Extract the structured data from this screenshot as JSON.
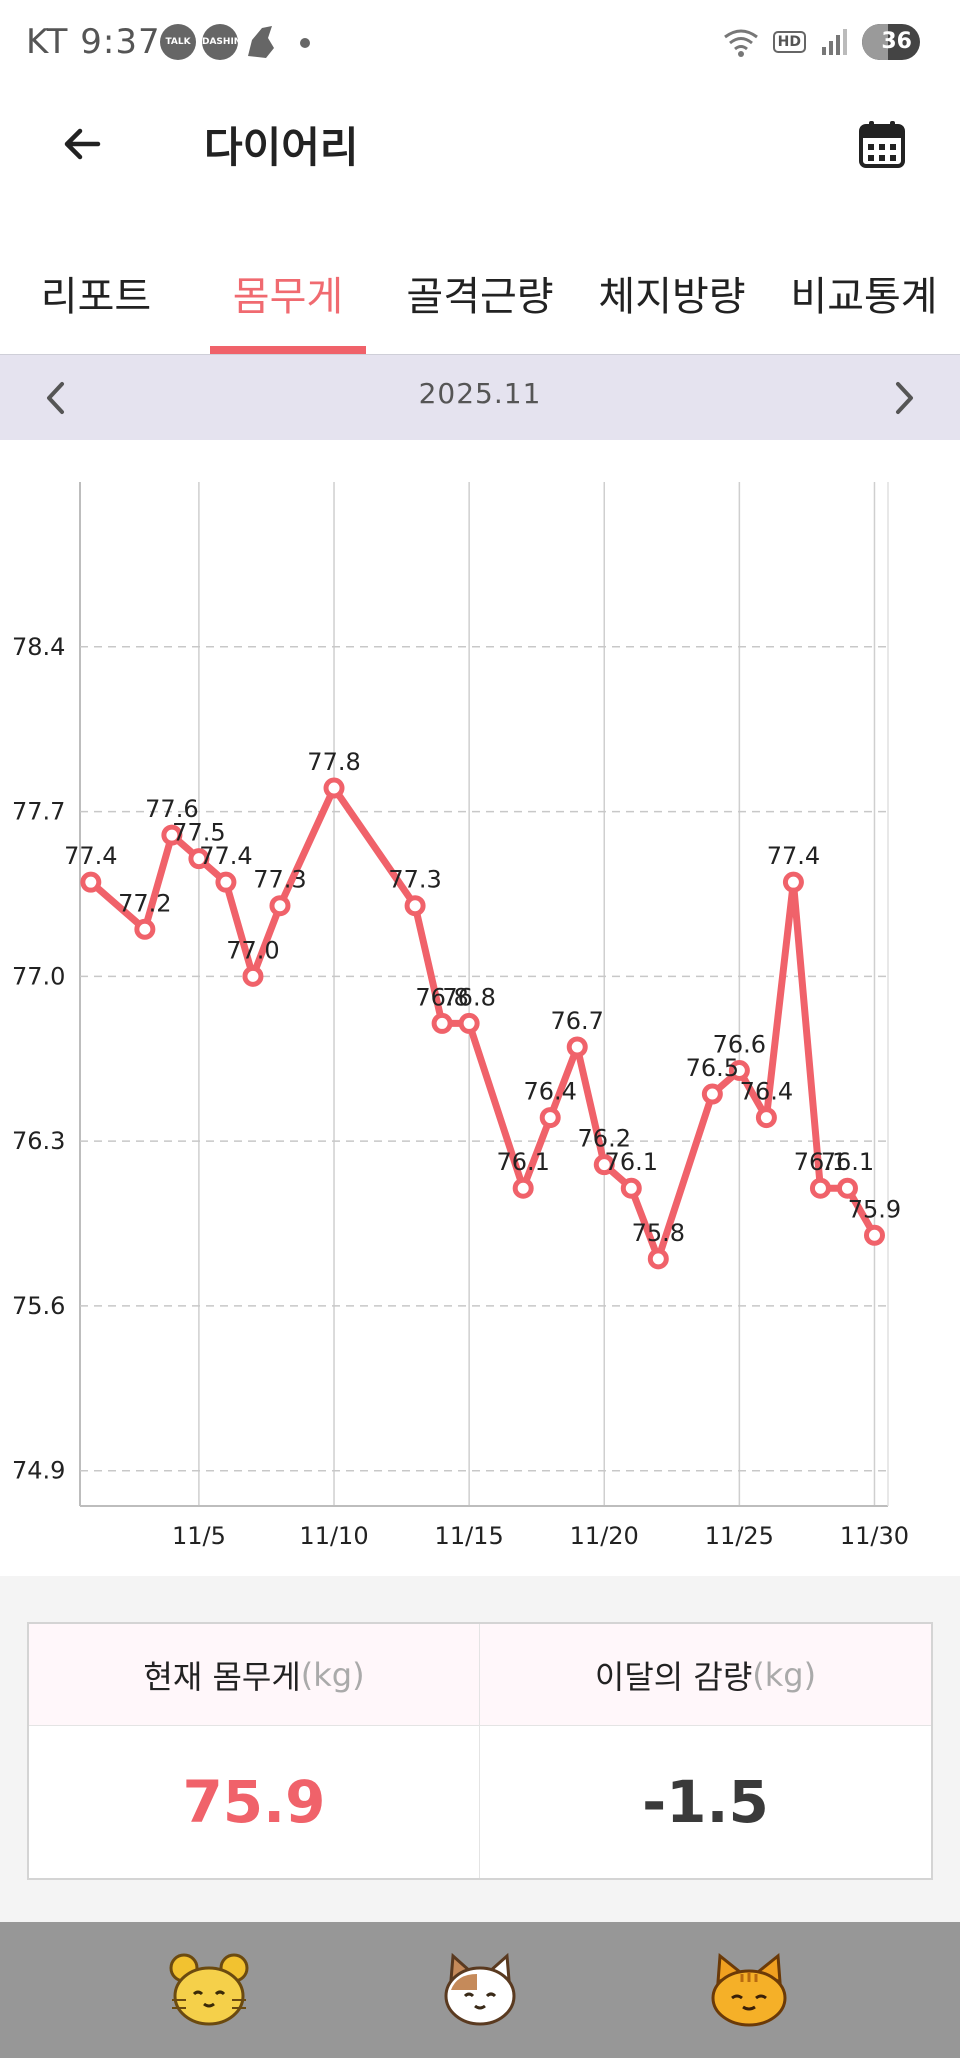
{
  "status_bar": {
    "carrier": "KT",
    "time": "9:37",
    "battery": "36",
    "hd_label": "HD",
    "talk_label": "TALK",
    "dash_label": "DASHIN"
  },
  "app_bar": {
    "title": "다이어리",
    "back_icon": "arrow-left-icon",
    "calendar_icon": "calendar-icon"
  },
  "tabs": [
    {
      "label": "리포트",
      "active": false
    },
    {
      "label": "몸무게",
      "active": true
    },
    {
      "label": "골격근량",
      "active": false
    },
    {
      "label": "체지방량",
      "active": false
    },
    {
      "label": "비교통계",
      "active": false
    }
  ],
  "month_nav": {
    "label": "2025.11",
    "prev_icon": "chevron-left-icon",
    "next_icon": "chevron-right-icon"
  },
  "chart_data": {
    "type": "line",
    "title": "",
    "xlabel": "",
    "ylabel": "",
    "x_ticks": [
      5,
      10,
      15,
      20,
      25,
      30
    ],
    "x_tick_labels": [
      "11/5",
      "11/10",
      "11/15",
      "11/20",
      "11/25",
      "11/30"
    ],
    "y_ticks": [
      78.4,
      77.7,
      77.0,
      76.3,
      75.6,
      74.9
    ],
    "y_tick_labels": [
      "78.4",
      "77.7",
      "77.0",
      "76.3",
      "75.6",
      "74.9"
    ],
    "xlim": [
      0.6,
      30.5
    ],
    "ylim": [
      74.75,
      79.1
    ],
    "grid": true,
    "line_color": "#f0626a",
    "series": [
      {
        "points": [
          {
            "x": 1,
            "y": 77.4
          },
          {
            "x": 3,
            "y": 77.2
          },
          {
            "x": 4,
            "y": 77.6
          },
          {
            "x": 5,
            "y": 77.5
          },
          {
            "x": 6,
            "y": 77.4
          },
          {
            "x": 7,
            "y": 77.0
          },
          {
            "x": 8,
            "y": 77.3
          },
          {
            "x": 10,
            "y": 77.8
          },
          {
            "x": 13,
            "y": 77.3
          },
          {
            "x": 14,
            "y": 76.8
          },
          {
            "x": 15,
            "y": 76.8
          },
          {
            "x": 17,
            "y": 76.1
          },
          {
            "x": 18,
            "y": 76.4
          },
          {
            "x": 19,
            "y": 76.7
          },
          {
            "x": 20,
            "y": 76.2
          },
          {
            "x": 21,
            "y": 76.1
          },
          {
            "x": 22,
            "y": 75.8
          },
          {
            "x": 24,
            "y": 76.5
          },
          {
            "x": 25,
            "y": 76.6
          },
          {
            "x": 26,
            "y": 76.4
          },
          {
            "x": 27,
            "y": 77.4
          },
          {
            "x": 28,
            "y": 76.1
          },
          {
            "x": 29,
            "y": 76.1
          },
          {
            "x": 30,
            "y": 75.9
          }
        ]
      }
    ]
  },
  "summary": {
    "current_label": "현재 몸무게",
    "current_unit": "(kg)",
    "current_value": "75.9",
    "monthly_label": "이달의 감량",
    "monthly_unit": "(kg)",
    "monthly_value": "-1.5"
  },
  "bottom_nav": [
    {
      "icon": "hamster-icon"
    },
    {
      "icon": "cat-face-icon"
    },
    {
      "icon": "tabby-cat-icon"
    }
  ]
}
